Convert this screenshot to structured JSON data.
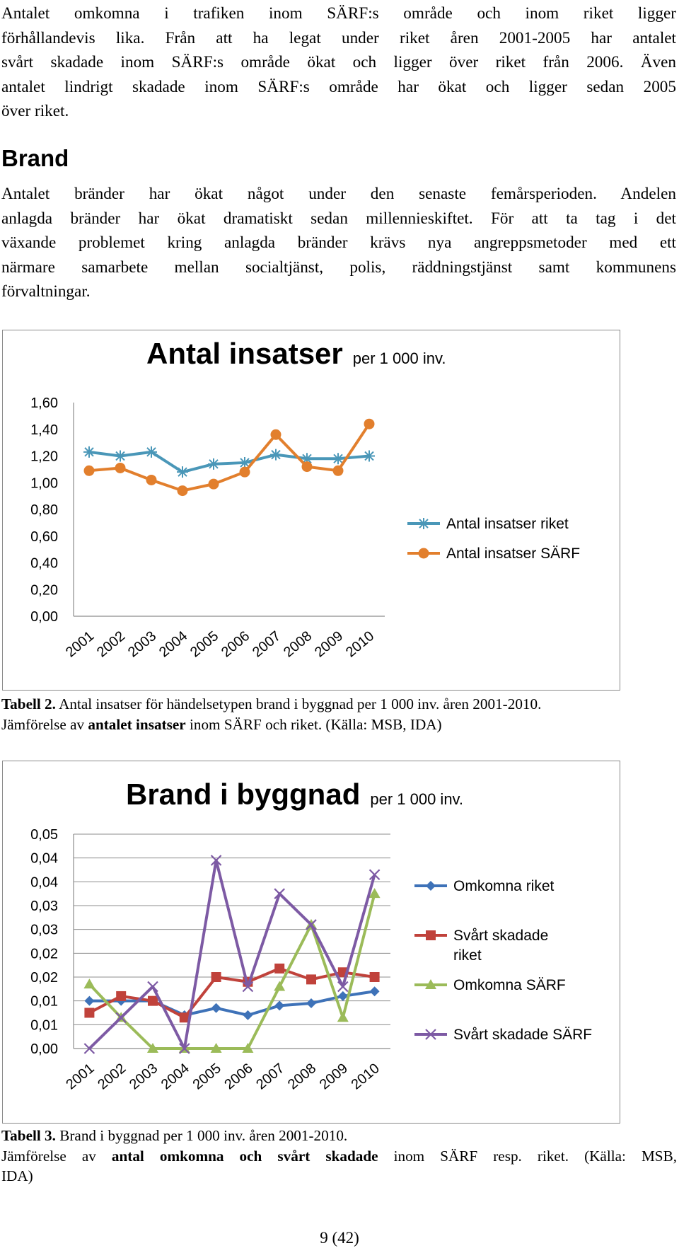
{
  "intro_lines": [
    "Antalet omkomna i trafiken inom SÄRF:s område och inom riket ligger",
    "förhållandevis lika. Från att ha legat under riket åren 2001-2005 har antalet",
    "svårt skadade inom SÄRF:s område ökat och ligger över riket från 2006. Även",
    "antalet lindrigt skadade inom SÄRF:s område har ökat och ligger sedan 2005",
    "över riket."
  ],
  "section_heading": "Brand",
  "brand_lines": [
    "Antalet bränder har ökat något under den senaste femårsperioden. Andelen",
    "anlagda bränder har ökat dramatiskt sedan millennieskiftet. För att ta tag i det",
    "växande problemet kring anlagda bränder krävs nya angreppsmetoder med ett",
    "närmare samarbete mellan socialtjänst, polis, räddningstjänst samt kommunens",
    "förvaltningar."
  ],
  "caption1": {
    "label": "Tabell 2.",
    "line1_rest": " Antal insatser för händelsetypen brand i byggnad per 1 000 inv. åren 2001-2010.",
    "line2_a": "Jämförelse av ",
    "line2_bold": "antalet insatser",
    "line2_b": " inom SÄRF och riket. (Källa: MSB, IDA)"
  },
  "caption2": {
    "label": "Tabell 3.",
    "line1_rest": " Brand i byggnad per 1 000 inv. åren 2001-2010.",
    "line2_a": "Jämförelse av ",
    "line2_bold": "antal omkomna och svårt skadade",
    "line2_b": " inom SÄRF resp. riket. (Källa: MSB,",
    "line3": "IDA)"
  },
  "page_number": "9 (42)",
  "chart_data": [
    {
      "type": "line",
      "title": "Antal insatser",
      "subtitle": "per 1 000 inv.",
      "categories": [
        "2001",
        "2002",
        "2003",
        "2004",
        "2005",
        "2006",
        "2007",
        "2008",
        "2009",
        "2010"
      ],
      "y_ticks": [
        "0,00",
        "0,20",
        "0,40",
        "0,60",
        "0,80",
        "1,00",
        "1,20",
        "1,40",
        "1,60"
      ],
      "ylim": [
        0,
        1.6
      ],
      "grid": false,
      "legend_position": "right",
      "series": [
        {
          "name": "Antal insatser riket",
          "color": "#4a97b8",
          "marker": "asterisk",
          "values": [
            1.23,
            1.2,
            1.23,
            1.08,
            1.14,
            1.15,
            1.21,
            1.18,
            1.18,
            1.2
          ]
        },
        {
          "name": "Antal insatser SÄRF",
          "color": "#e27f2d",
          "marker": "circle",
          "values": [
            1.09,
            1.11,
            1.02,
            0.94,
            0.99,
            1.08,
            1.36,
            1.12,
            1.09,
            1.44
          ]
        }
      ]
    },
    {
      "type": "line",
      "title": "Brand i byggnad",
      "subtitle": "per 1 000 inv.",
      "categories": [
        "2001",
        "2002",
        "2003",
        "2004",
        "2005",
        "2006",
        "2007",
        "2008",
        "2009",
        "2010"
      ],
      "y_ticks": [
        "0,00",
        "0,01",
        "0,01",
        "0,02",
        "0,02",
        "0,03",
        "0,03",
        "0,04",
        "0,04",
        "0,05"
      ],
      "ylim": [
        0,
        0.045
      ],
      "grid": true,
      "legend_position": "right",
      "series": [
        {
          "name": "Omkomna riket",
          "color": "#3e72b8",
          "marker": "diamond",
          "values": [
            0.01,
            0.01,
            0.01,
            0.007,
            0.0085,
            0.007,
            0.009,
            0.0095,
            0.011,
            0.012
          ]
        },
        {
          "name": "Svårt skadade riket",
          "color": "#c0423b",
          "marker": "square",
          "values": [
            0.0075,
            0.011,
            0.01,
            0.0065,
            0.015,
            0.014,
            0.0168,
            0.0145,
            0.016,
            0.015
          ]
        },
        {
          "name": "Omkomna SÄRF",
          "color": "#9bbb59",
          "marker": "triangle",
          "values": [
            0.0135,
            0.0065,
            0.0,
            0.0,
            0.0,
            0.0,
            0.013,
            0.026,
            0.0065,
            0.0325
          ]
        },
        {
          "name": "Svårt skadade SÄRF",
          "color": "#7d5aa4",
          "marker": "x",
          "values": [
            0.0,
            0.0065,
            0.013,
            0.0,
            0.0395,
            0.013,
            0.0325,
            0.026,
            0.013,
            0.0365
          ]
        }
      ]
    }
  ]
}
